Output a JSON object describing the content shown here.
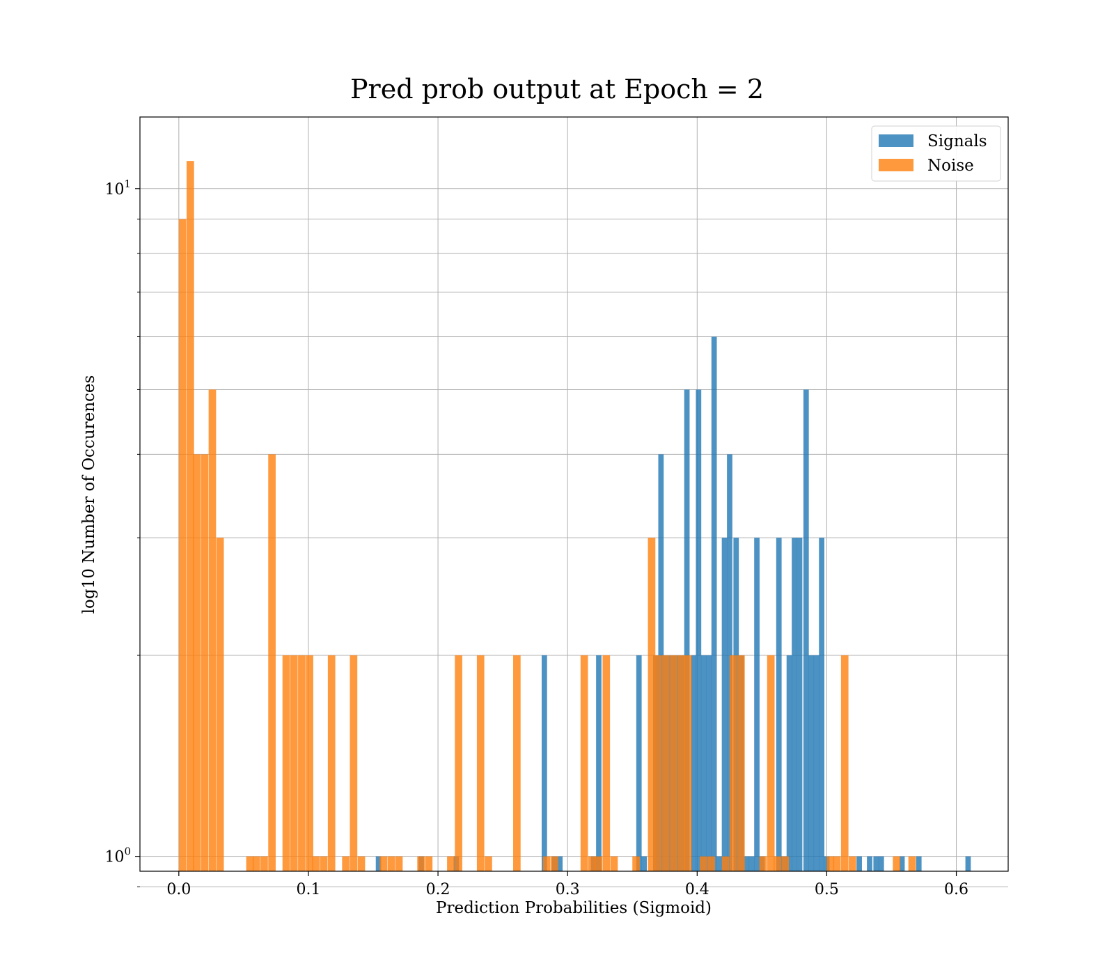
{
  "chart_data": {
    "type": "bar",
    "title": "Pred prob output at Epoch = 2",
    "xlabel": "Prediction Probabilities (Sigmoid)",
    "ylabel": "log10 Number of Occurences",
    "x_scale": "linear",
    "y_scale": "log",
    "xlim": [
      -0.03,
      0.64
    ],
    "ylim": [
      0.95,
      12.8
    ],
    "x_ticks": [
      0.0,
      0.1,
      0.2,
      0.3,
      0.4,
      0.5,
      0.6
    ],
    "x_tick_labels": [
      "0.0",
      "0.1",
      "0.2",
      "0.3",
      "0.4",
      "0.5",
      "0.6"
    ],
    "y_major_ticks": [
      1,
      10
    ],
    "y_minor_ticks": [
      0.9,
      2,
      3,
      4,
      5,
      6,
      7,
      8,
      9
    ],
    "grid": true,
    "legend_position": "top-right",
    "series": [
      {
        "name": "Signals",
        "color": "#1f77b4",
        "opacity": 0.8,
        "bin_width": 0.00416,
        "bins": [
          [
            0.152,
            1
          ],
          [
            0.185,
            1
          ],
          [
            0.212,
            1
          ],
          [
            0.28,
            2
          ],
          [
            0.288,
            1
          ],
          [
            0.292,
            1
          ],
          [
            0.318,
            1
          ],
          [
            0.322,
            2
          ],
          [
            0.353,
            2
          ],
          [
            0.357,
            1
          ],
          [
            0.366,
            2
          ],
          [
            0.37,
            4
          ],
          [
            0.374,
            2
          ],
          [
            0.378,
            2
          ],
          [
            0.382,
            2
          ],
          [
            0.386,
            2
          ],
          [
            0.39,
            5
          ],
          [
            0.395,
            2
          ],
          [
            0.399,
            5
          ],
          [
            0.403,
            2
          ],
          [
            0.407,
            2
          ],
          [
            0.411,
            6
          ],
          [
            0.415,
            1
          ],
          [
            0.419,
            3
          ],
          [
            0.423,
            4
          ],
          [
            0.428,
            3
          ],
          [
            0.432,
            2
          ],
          [
            0.436,
            1
          ],
          [
            0.44,
            1
          ],
          [
            0.444,
            3
          ],
          [
            0.448,
            1
          ],
          [
            0.461,
            3
          ],
          [
            0.465,
            1
          ],
          [
            0.469,
            2
          ],
          [
            0.473,
            3
          ],
          [
            0.477,
            3
          ],
          [
            0.482,
            5
          ],
          [
            0.486,
            2
          ],
          [
            0.49,
            2
          ],
          [
            0.494,
            3
          ],
          [
            0.498,
            1
          ],
          [
            0.523,
            1
          ],
          [
            0.531,
            1
          ],
          [
            0.536,
            1
          ],
          [
            0.54,
            1
          ],
          [
            0.556,
            1
          ],
          [
            0.569,
            1
          ],
          [
            0.607,
            1
          ]
        ]
      },
      {
        "name": "Noise",
        "color": "#ff7f0e",
        "opacity": 0.8,
        "bin_width": 0.00574,
        "bins": [
          [
            0.0,
            9
          ],
          [
            0.006,
            11
          ],
          [
            0.011,
            4
          ],
          [
            0.017,
            4
          ],
          [
            0.023,
            5
          ],
          [
            0.029,
            3
          ],
          [
            0.052,
            1
          ],
          [
            0.057,
            1
          ],
          [
            0.063,
            1
          ],
          [
            0.069,
            4
          ],
          [
            0.08,
            2
          ],
          [
            0.086,
            2
          ],
          [
            0.092,
            2
          ],
          [
            0.098,
            2
          ],
          [
            0.103,
            1
          ],
          [
            0.109,
            1
          ],
          [
            0.115,
            2
          ],
          [
            0.126,
            1
          ],
          [
            0.132,
            2
          ],
          [
            0.138,
            1
          ],
          [
            0.155,
            1
          ],
          [
            0.161,
            1
          ],
          [
            0.167,
            1
          ],
          [
            0.184,
            1
          ],
          [
            0.19,
            1
          ],
          [
            0.207,
            1
          ],
          [
            0.213,
            2
          ],
          [
            0.23,
            2
          ],
          [
            0.236,
            1
          ],
          [
            0.258,
            2
          ],
          [
            0.281,
            1
          ],
          [
            0.287,
            1
          ],
          [
            0.31,
            2
          ],
          [
            0.316,
            1
          ],
          [
            0.321,
            1
          ],
          [
            0.327,
            2
          ],
          [
            0.333,
            1
          ],
          [
            0.35,
            1
          ],
          [
            0.362,
            3
          ],
          [
            0.367,
            2
          ],
          [
            0.373,
            2
          ],
          [
            0.379,
            2
          ],
          [
            0.385,
            2
          ],
          [
            0.39,
            2
          ],
          [
            0.402,
            1
          ],
          [
            0.408,
            1
          ],
          [
            0.419,
            1
          ],
          [
            0.425,
            2
          ],
          [
            0.431,
            2
          ],
          [
            0.448,
            1
          ],
          [
            0.454,
            2
          ],
          [
            0.459,
            1
          ],
          [
            0.465,
            1
          ],
          [
            0.5,
            1
          ],
          [
            0.505,
            1
          ],
          [
            0.511,
            2
          ],
          [
            0.517,
            1
          ],
          [
            0.551,
            1
          ],
          [
            0.563,
            1
          ]
        ]
      }
    ]
  }
}
